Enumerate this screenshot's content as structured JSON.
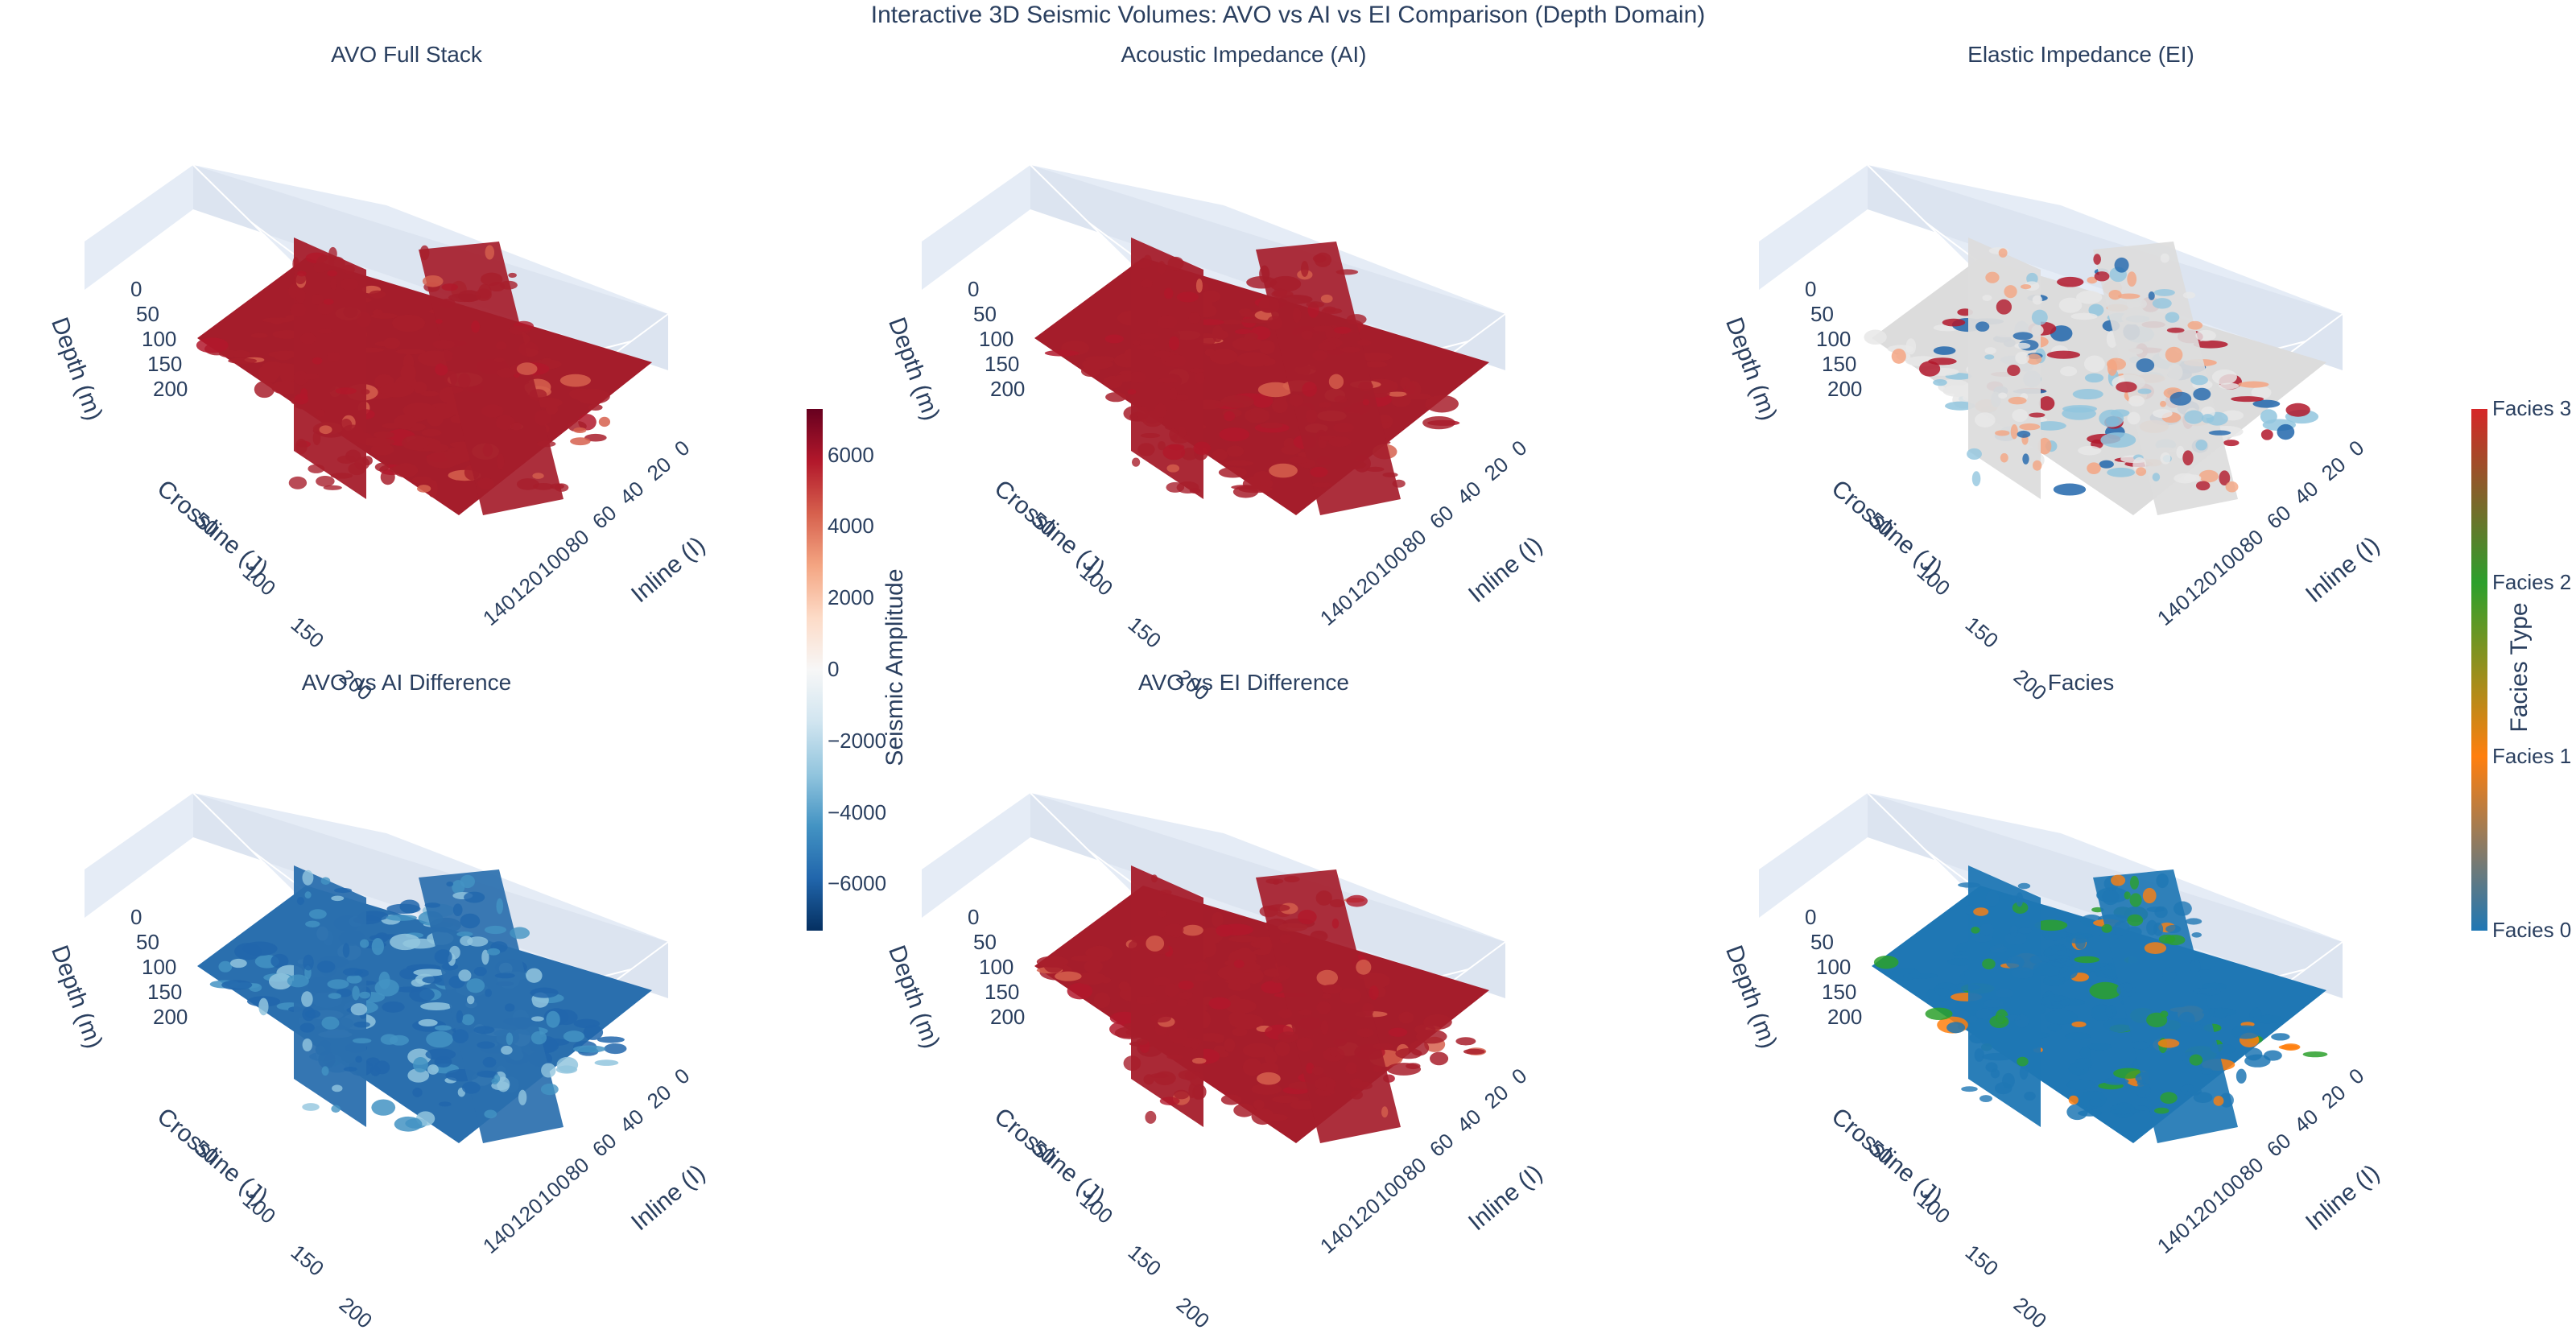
{
  "title": "Interactive 3D Seismic Volumes: AVO vs AI vs EI Comparison (Depth Domain)",
  "chart_data": [
    {
      "type": "volume",
      "title": "AVO Full Stack",
      "colormap": "RdBu",
      "dominant": "red",
      "axes": {
        "depth": {
          "label": "Depth (m)",
          "ticks": [
            "0",
            "50",
            "100",
            "150",
            "200"
          ]
        },
        "crossline": {
          "label": "Crossline (J)",
          "ticks": [
            "0",
            "50",
            "100",
            "150",
            "200"
          ]
        },
        "inline": {
          "label": "Inline (I)",
          "ticks": [
            "0",
            "20",
            "40",
            "60",
            "80",
            "100",
            "120",
            "140"
          ]
        }
      }
    },
    {
      "type": "volume",
      "title": "Acoustic Impedance (AI)",
      "colormap": "RdBu",
      "dominant": "red",
      "axes": {
        "depth": {
          "label": "Depth (m)",
          "ticks": [
            "0",
            "50",
            "100",
            "150",
            "200"
          ]
        },
        "crossline": {
          "label": "Crossline (J)",
          "ticks": [
            "0",
            "50",
            "100",
            "150",
            "200"
          ]
        },
        "inline": {
          "label": "Inline (I)",
          "ticks": [
            "0",
            "20",
            "40",
            "60",
            "80",
            "100",
            "120",
            "140"
          ]
        }
      }
    },
    {
      "type": "volume",
      "title": "Elastic Impedance (EI)",
      "colormap": "RdBu",
      "dominant": "mixed",
      "axes": {
        "depth": {
          "label": "Depth (m)",
          "ticks": [
            "0",
            "50",
            "100",
            "150",
            "200"
          ]
        },
        "crossline": {
          "label": "Crossline (J)",
          "ticks": [
            "0",
            "50",
            "100",
            "150",
            "200"
          ]
        },
        "inline": {
          "label": "Inline (I)",
          "ticks": [
            "0",
            "20",
            "40",
            "60",
            "80",
            "100",
            "120",
            "140"
          ]
        }
      }
    },
    {
      "type": "volume",
      "title": "AVO vs AI Difference",
      "colormap": "RdBu",
      "dominant": "blue",
      "axes": {
        "depth": {
          "label": "Depth (m)",
          "ticks": [
            "0",
            "50",
            "100",
            "150",
            "200"
          ]
        },
        "crossline": {
          "label": "Crossline (J)",
          "ticks": [
            "0",
            "50",
            "100",
            "150",
            "200"
          ]
        },
        "inline": {
          "label": "Inline (I)",
          "ticks": [
            "0",
            "20",
            "40",
            "60",
            "80",
            "100",
            "120",
            "140"
          ]
        }
      }
    },
    {
      "type": "volume",
      "title": "AVO vs EI Difference",
      "colormap": "RdBu",
      "dominant": "red",
      "axes": {
        "depth": {
          "label": "Depth (m)",
          "ticks": [
            "0",
            "50",
            "100",
            "150",
            "200"
          ]
        },
        "crossline": {
          "label": "Crossline (J)",
          "ticks": [
            "0",
            "50",
            "100",
            "150",
            "200"
          ]
        },
        "inline": {
          "label": "Inline (I)",
          "ticks": [
            "0",
            "20",
            "40",
            "60",
            "80",
            "100",
            "120",
            "140"
          ]
        }
      }
    },
    {
      "type": "volume",
      "title": "Facies",
      "colormap": "facies",
      "dominant": "facies",
      "axes": {
        "depth": {
          "label": "Depth (m)",
          "ticks": [
            "0",
            "50",
            "100",
            "150",
            "200"
          ]
        },
        "crossline": {
          "label": "Crossline (J)",
          "ticks": [
            "0",
            "50",
            "100",
            "150",
            "200"
          ]
        },
        "inline": {
          "label": "Inline (I)",
          "ticks": [
            "0",
            "20",
            "40",
            "60",
            "80",
            "100",
            "120",
            "140"
          ]
        }
      }
    }
  ],
  "colorbars": {
    "amplitude": {
      "title": "Seismic Amplitude",
      "range": [
        -7300,
        7300
      ],
      "ticks": [
        {
          "value": 6000,
          "label": "6000"
        },
        {
          "value": 4000,
          "label": "4000"
        },
        {
          "value": 2000,
          "label": "2000"
        },
        {
          "value": 0,
          "label": "0"
        },
        {
          "value": -2000,
          "label": "−2000"
        },
        {
          "value": -4000,
          "label": "−4000"
        },
        {
          "value": -6000,
          "label": "−6000"
        }
      ],
      "colors": [
        "#053061",
        "#2166ac",
        "#4393c3",
        "#92c5de",
        "#d1e5f0",
        "#f7f7f7",
        "#fddbc7",
        "#f4a582",
        "#d6604d",
        "#b2182b",
        "#67001f"
      ]
    },
    "facies": {
      "title": "Facies Type",
      "range": [
        0,
        3
      ],
      "ticks": [
        {
          "value": 3,
          "label": "Facies 3"
        },
        {
          "value": 2,
          "label": "Facies 2"
        },
        {
          "value": 1,
          "label": "Facies 1"
        },
        {
          "value": 0,
          "label": "Facies 0"
        }
      ],
      "colors": [
        "#1f77b4",
        "#ff7f0e",
        "#2ca02c",
        "#d62728"
      ]
    }
  },
  "colors": {
    "text": "#2a3f5f",
    "grid": "#ffffff",
    "pane": "#e5ecf6"
  }
}
